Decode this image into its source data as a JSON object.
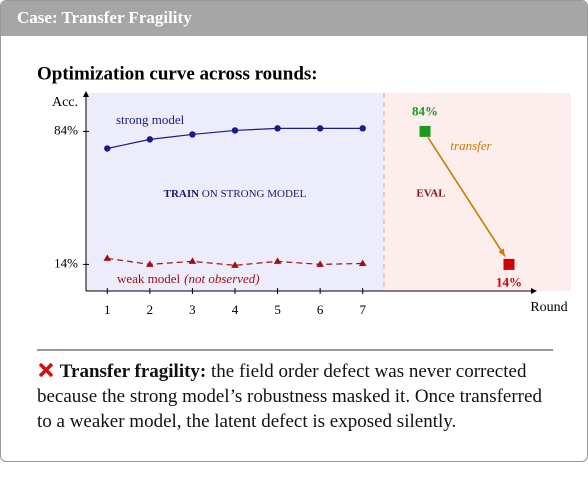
{
  "header": {
    "title": "Case: Transfer Fragility"
  },
  "chart_data": {
    "type": "line",
    "title": "Optimization curve across rounds:",
    "ylabel": "Acc.",
    "xlabel": "Round",
    "x": [
      1,
      2,
      3,
      4,
      5,
      6,
      7
    ],
    "xlim": [
      0.5,
      7.5
    ],
    "ylim": [
      0,
      100
    ],
    "yticks": [
      {
        "value": 14,
        "label": "14%"
      },
      {
        "value": 84,
        "label": "84%"
      }
    ],
    "series": [
      {
        "name": "strong model",
        "color": "#1a1a8c",
        "marker": "circle",
        "line_style": "solid",
        "values": [
          75,
          79.8,
          82.4,
          84.5,
          85.6,
          85.6,
          85.6
        ]
      },
      {
        "name": "weak model",
        "name_note": "(not observed)",
        "color": "#a01010",
        "marker": "triangle",
        "line_style": "dashed",
        "values": [
          17.2,
          14,
          15.6,
          13.5,
          15.6,
          14,
          14.5
        ]
      }
    ],
    "regions": [
      {
        "label_bold": "TRAIN",
        "label": " ON STRONG MODEL",
        "color": "#ececfa",
        "text_color": "#1a1a6c"
      },
      {
        "label_bold": "EVAL",
        "color": "#fdeeee",
        "text_color": "#8a1010"
      }
    ],
    "eval": {
      "values": [
        84,
        14
      ],
      "value_labels": [
        "84%",
        "14%"
      ],
      "colors": [
        "#1a9a1a",
        "#cc0000"
      ],
      "arrow_label": "transfer",
      "arrow_color": "#cc7a00"
    }
  },
  "caption": {
    "lead": "Transfer fragility:",
    "text": " the field order defect was never corrected because the strong model’s robustness masked it. Once transferred to a weaker model, the latent defect is exposed silently."
  }
}
